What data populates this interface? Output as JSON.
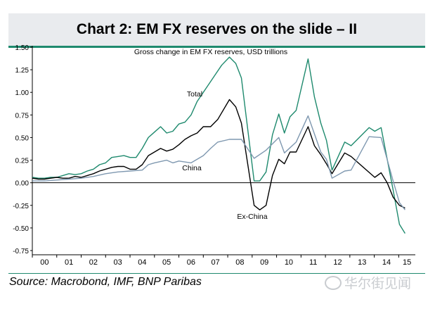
{
  "title": "Chart 2: EM FX reserves on the slide – II",
  "source": "Source: Macrobond, IMF, BNP Paribas",
  "watermark": "华尔街见闻",
  "colors": {
    "total": "#1f8a6e",
    "ex_china": "#000000",
    "china": "#7f98b0",
    "accent": "#1f8a6e"
  },
  "chart_data": {
    "type": "line",
    "title": "Gross change in EM FX reserves, USD trillions",
    "xlabel": "",
    "ylabel": "",
    "xlim": [
      2000,
      2015.45
    ],
    "ylim": [
      -0.75,
      1.5
    ],
    "yticks": [
      1.5,
      1.25,
      1.0,
      0.75,
      0.5,
      0.25,
      0.0,
      -0.25,
      -0.5,
      -0.75
    ],
    "ytick_labels": [
      "1.50",
      "1.25",
      "1.00",
      "0.75",
      "0.50",
      "0.25",
      "0.00",
      "-0.25",
      "-0.50",
      "-0.75"
    ],
    "xtick_labels": [
      "00",
      "01",
      "02",
      "03",
      "04",
      "05",
      "06",
      "07",
      "08",
      "09",
      "10",
      "11",
      "12",
      "13",
      "14",
      "15"
    ],
    "series": [
      {
        "name": "Total",
        "label": "Total",
        "color": "#1f8a6e",
        "points": [
          [
            2000,
            0.06
          ],
          [
            2000.25,
            0.05
          ],
          [
            2000.5,
            0.05
          ],
          [
            2000.75,
            0.06
          ],
          [
            2001,
            0.06
          ],
          [
            2001.25,
            0.08
          ],
          [
            2001.5,
            0.1
          ],
          [
            2001.75,
            0.09
          ],
          [
            2002,
            0.1
          ],
          [
            2002.25,
            0.13
          ],
          [
            2002.5,
            0.15
          ],
          [
            2002.75,
            0.2
          ],
          [
            2003,
            0.22
          ],
          [
            2003.25,
            0.28
          ],
          [
            2003.5,
            0.29
          ],
          [
            2003.75,
            0.3
          ],
          [
            2004,
            0.28
          ],
          [
            2004.25,
            0.28
          ],
          [
            2004.5,
            0.38
          ],
          [
            2004.75,
            0.5
          ],
          [
            2005,
            0.56
          ],
          [
            2005.25,
            0.62
          ],
          [
            2005.5,
            0.55
          ],
          [
            2005.75,
            0.57
          ],
          [
            2006,
            0.65
          ],
          [
            2006.25,
            0.67
          ],
          [
            2006.5,
            0.75
          ],
          [
            2006.75,
            0.9
          ],
          [
            2007,
            1.0
          ],
          [
            2007.25,
            1.1
          ],
          [
            2007.5,
            1.2
          ],
          [
            2007.75,
            1.3
          ],
          [
            2008.07,
            1.39
          ],
          [
            2008.33,
            1.32
          ],
          [
            2008.56,
            1.16
          ],
          [
            2009.08,
            0.02
          ],
          [
            2009.31,
            0.02
          ],
          [
            2009.57,
            0.12
          ],
          [
            2009.83,
            0.53
          ],
          [
            2010.09,
            0.76
          ],
          [
            2010.32,
            0.55
          ],
          [
            2010.55,
            0.73
          ],
          [
            2010.8,
            0.8
          ],
          [
            2011.29,
            1.37
          ],
          [
            2011.55,
            0.95
          ],
          [
            2011.81,
            0.66
          ],
          [
            2012.04,
            0.47
          ],
          [
            2012.27,
            0.14
          ],
          [
            2012.79,
            0.45
          ],
          [
            2013.05,
            0.41
          ],
          [
            2013.79,
            0.61
          ],
          [
            2014.02,
            0.57
          ],
          [
            2014.28,
            0.61
          ],
          [
            2014.77,
            -0.08
          ],
          [
            2015.03,
            -0.46
          ],
          [
            2015.26,
            -0.56
          ]
        ]
      },
      {
        "name": "Ex-China",
        "label": "Ex-China",
        "color": "#000000",
        "points": [
          [
            2000,
            0.05
          ],
          [
            2000.25,
            0.04
          ],
          [
            2000.5,
            0.04
          ],
          [
            2000.75,
            0.05
          ],
          [
            2001,
            0.06
          ],
          [
            2001.25,
            0.05
          ],
          [
            2001.5,
            0.05
          ],
          [
            2001.75,
            0.07
          ],
          [
            2002,
            0.06
          ],
          [
            2002.25,
            0.08
          ],
          [
            2002.5,
            0.1
          ],
          [
            2002.75,
            0.13
          ],
          [
            2003,
            0.15
          ],
          [
            2003.25,
            0.17
          ],
          [
            2003.5,
            0.18
          ],
          [
            2003.75,
            0.18
          ],
          [
            2004,
            0.15
          ],
          [
            2004.25,
            0.15
          ],
          [
            2004.5,
            0.2
          ],
          [
            2004.75,
            0.3
          ],
          [
            2005,
            0.34
          ],
          [
            2005.25,
            0.38
          ],
          [
            2005.5,
            0.35
          ],
          [
            2005.75,
            0.37
          ],
          [
            2006,
            0.42
          ],
          [
            2006.25,
            0.48
          ],
          [
            2006.5,
            0.52
          ],
          [
            2006.75,
            0.55
          ],
          [
            2007,
            0.62
          ],
          [
            2007.3,
            0.62
          ],
          [
            2007.59,
            0.7
          ],
          [
            2008.07,
            0.92
          ],
          [
            2008.33,
            0.84
          ],
          [
            2008.56,
            0.66
          ],
          [
            2009.08,
            -0.25
          ],
          [
            2009.31,
            -0.3
          ],
          [
            2009.57,
            -0.25
          ],
          [
            2009.83,
            0.08
          ],
          [
            2010.09,
            0.26
          ],
          [
            2010.32,
            0.21
          ],
          [
            2010.55,
            0.34
          ],
          [
            2010.8,
            0.34
          ],
          [
            2011.29,
            0.62
          ],
          [
            2011.55,
            0.41
          ],
          [
            2011.81,
            0.31
          ],
          [
            2012.04,
            0.21
          ],
          [
            2012.27,
            0.1
          ],
          [
            2012.79,
            0.33
          ],
          [
            2013.05,
            0.29
          ],
          [
            2014.02,
            0.06
          ],
          [
            2014.28,
            0.11
          ],
          [
            2014.53,
            0.0
          ],
          [
            2014.77,
            -0.16
          ],
          [
            2015.03,
            -0.25
          ],
          [
            2015.26,
            -0.28
          ]
        ]
      },
      {
        "name": "China",
        "label": "China",
        "color": "#7f98b0",
        "points": [
          [
            2000,
            0.02
          ],
          [
            2000.5,
            0.02
          ],
          [
            2001,
            0.03
          ],
          [
            2001.5,
            0.04
          ],
          [
            2002,
            0.05
          ],
          [
            2002.5,
            0.07
          ],
          [
            2003,
            0.1
          ],
          [
            2003.5,
            0.12
          ],
          [
            2004,
            0.13
          ],
          [
            2004.5,
            0.14
          ],
          [
            2004.75,
            0.2
          ],
          [
            2005,
            0.22
          ],
          [
            2005.5,
            0.25
          ],
          [
            2005.75,
            0.22
          ],
          [
            2006,
            0.24
          ],
          [
            2006.5,
            0.22
          ],
          [
            2007,
            0.3
          ],
          [
            2007.3,
            0.38
          ],
          [
            2007.59,
            0.45
          ],
          [
            2008.07,
            0.48
          ],
          [
            2008.56,
            0.48
          ],
          [
            2009.08,
            0.27
          ],
          [
            2009.57,
            0.36
          ],
          [
            2010.09,
            0.5
          ],
          [
            2010.32,
            0.33
          ],
          [
            2010.8,
            0.45
          ],
          [
            2011.29,
            0.74
          ],
          [
            2011.81,
            0.34
          ],
          [
            2012.04,
            0.26
          ],
          [
            2012.27,
            0.05
          ],
          [
            2012.79,
            0.13
          ],
          [
            2013.05,
            0.14
          ],
          [
            2013.79,
            0.51
          ],
          [
            2014.28,
            0.5
          ],
          [
            2014.77,
            0.02
          ],
          [
            2015.03,
            -0.22
          ],
          [
            2015.26,
            -0.3
          ]
        ]
      }
    ]
  }
}
